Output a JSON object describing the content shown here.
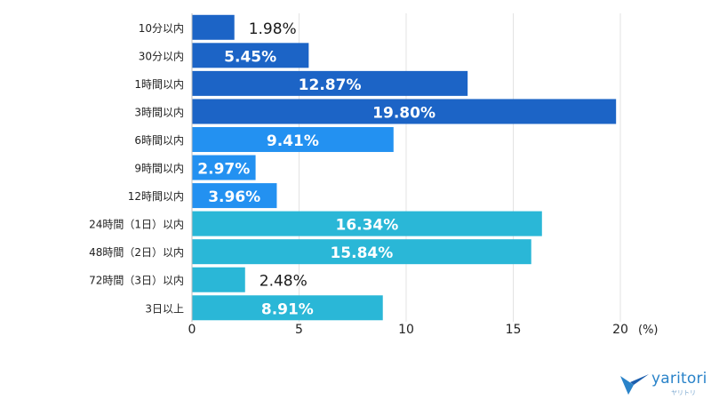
{
  "chart_data": {
    "type": "bar",
    "orientation": "horizontal",
    "categories": [
      "10分以内",
      "30分以内",
      "1時間以内",
      "3時間以内",
      "6時間以内",
      "9時間以内",
      "12時間以内",
      "24時間（1日）以内",
      "48時間（2日）以内",
      "72時間（3日）以内",
      "3日以上"
    ],
    "values": [
      1.98,
      5.45,
      12.87,
      19.8,
      9.41,
      2.97,
      3.96,
      16.34,
      15.84,
      2.48,
      8.91
    ],
    "value_labels": [
      "1.98%",
      "5.45%",
      "12.87%",
      "19.80%",
      "9.41%",
      "2.97%",
      "3.96%",
      "16.34%",
      "15.84%",
      "2.48%",
      "8.91%"
    ],
    "colors": [
      "#1c64c6",
      "#1c64c6",
      "#1c64c6",
      "#1c64c6",
      "#2391f1",
      "#2391f1",
      "#2391f1",
      "#2ab7d7",
      "#2ab7d7",
      "#2ab7d7",
      "#2ab7d7"
    ],
    "label_inside": [
      false,
      true,
      true,
      true,
      true,
      true,
      true,
      true,
      true,
      false,
      true
    ],
    "x_ticks": [
      "0",
      "5",
      "10",
      "15",
      "20"
    ],
    "x_unit": "(%)",
    "xlim": [
      0,
      20
    ],
    "grid": true
  },
  "logo": {
    "text": "yaritori",
    "sub": "ヤリトリ"
  }
}
